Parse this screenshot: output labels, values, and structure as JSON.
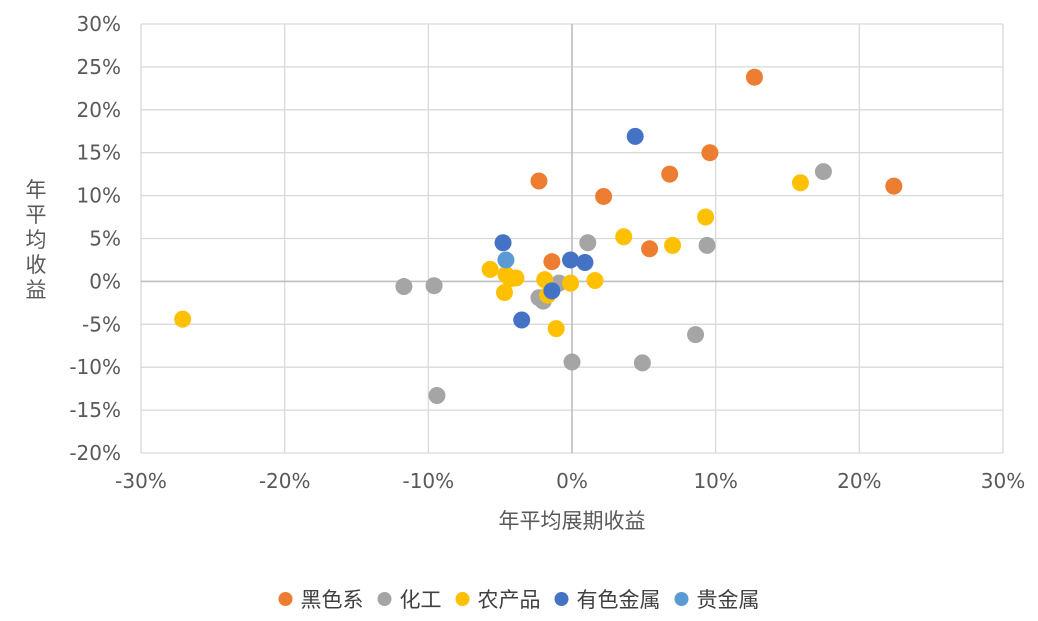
{
  "chart_data": {
    "type": "scatter",
    "xlabel": "年平均展期收益",
    "ylabel": "年平均收益",
    "xlim": [
      -0.3,
      0.3
    ],
    "ylim": [
      -0.2,
      0.3
    ],
    "x_ticks": [
      "-30%",
      "-20%",
      "-10%",
      "0%",
      "10%",
      "20%",
      "30%"
    ],
    "y_ticks": [
      "30%",
      "25%",
      "20%",
      "15%",
      "10%",
      "5%",
      "0%",
      "-5%",
      "-10%",
      "-15%",
      "-20%"
    ],
    "grid": true,
    "legend_position": "bottom",
    "series": [
      {
        "name": "黑色系",
        "color": "#ED7D31",
        "points": [
          {
            "x": 0.127,
            "y": 0.238
          },
          {
            "x": 0.096,
            "y": 0.15
          },
          {
            "x": 0.068,
            "y": 0.125
          },
          {
            "x": -0.023,
            "y": 0.117
          },
          {
            "x": 0.022,
            "y": 0.099
          },
          {
            "x": 0.054,
            "y": 0.038
          },
          {
            "x": -0.014,
            "y": 0.023
          },
          {
            "x": 0.224,
            "y": 0.111
          }
        ]
      },
      {
        "name": "化工",
        "color": "#A5A5A5",
        "points": [
          {
            "x": 0.175,
            "y": 0.128
          },
          {
            "x": 0.094,
            "y": 0.042
          },
          {
            "x": 0.011,
            "y": 0.045
          },
          {
            "x": -0.117,
            "y": -0.006
          },
          {
            "x": -0.096,
            "y": -0.005
          },
          {
            "x": -0.023,
            "y": -0.019
          },
          {
            "x": -0.02,
            "y": -0.023
          },
          {
            "x": -0.009,
            "y": -0.002
          },
          {
            "x": 0.086,
            "y": -0.062
          },
          {
            "x": 0.0,
            "y": -0.094
          },
          {
            "x": 0.049,
            "y": -0.095
          },
          {
            "x": -0.094,
            "y": -0.133
          }
        ]
      },
      {
        "name": "农产品",
        "color": "#FFC000",
        "points": [
          {
            "x": 0.159,
            "y": 0.115
          },
          {
            "x": 0.093,
            "y": 0.075
          },
          {
            "x": 0.036,
            "y": 0.052
          },
          {
            "x": 0.07,
            "y": 0.042
          },
          {
            "x": -0.057,
            "y": 0.014
          },
          {
            "x": -0.046,
            "y": 0.008
          },
          {
            "x": -0.043,
            "y": 0.003
          },
          {
            "x": -0.039,
            "y": 0.004
          },
          {
            "x": -0.019,
            "y": 0.002
          },
          {
            "x": -0.001,
            "y": -0.002
          },
          {
            "x": 0.016,
            "y": 0.001
          },
          {
            "x": -0.047,
            "y": -0.013
          },
          {
            "x": -0.011,
            "y": -0.055
          },
          {
            "x": -0.271,
            "y": -0.044
          },
          {
            "x": -0.017,
            "y": -0.016
          }
        ]
      },
      {
        "name": "有色金属",
        "color": "#4472C4",
        "points": [
          {
            "x": 0.044,
            "y": 0.169
          },
          {
            "x": -0.048,
            "y": 0.045
          },
          {
            "x": -0.001,
            "y": 0.025
          },
          {
            "x": 0.009,
            "y": 0.022
          },
          {
            "x": -0.014,
            "y": -0.011
          },
          {
            "x": -0.035,
            "y": -0.045
          }
        ]
      },
      {
        "name": "贵金属",
        "color": "#5B9BD5",
        "points": [
          {
            "x": -0.046,
            "y": 0.025
          }
        ]
      }
    ]
  }
}
